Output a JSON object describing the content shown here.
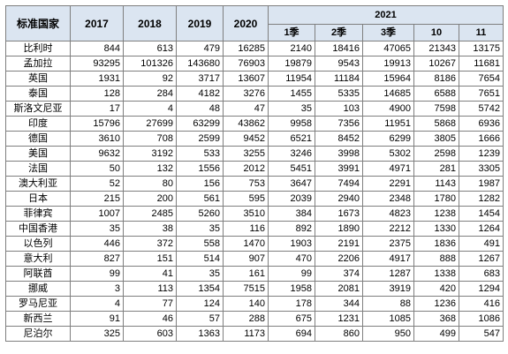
{
  "header": {
    "label": "标准国家",
    "years": [
      "2017",
      "2018",
      "2019",
      "2020"
    ],
    "group": "2021",
    "sub": [
      "1季",
      "2季",
      "3季",
      "10",
      "11"
    ]
  },
  "rows": [
    {
      "name": "比利时",
      "values": [
        "844",
        "613",
        "479",
        "16285",
        "2140",
        "18416",
        "47065",
        "21343",
        "13175"
      ]
    },
    {
      "name": "孟加拉",
      "values": [
        "93295",
        "101326",
        "143680",
        "76903",
        "19879",
        "9543",
        "19913",
        "10267",
        "11681"
      ]
    },
    {
      "name": "英国",
      "values": [
        "1931",
        "92",
        "3717",
        "13607",
        "11954",
        "11184",
        "15964",
        "8186",
        "7654"
      ]
    },
    {
      "name": "泰国",
      "values": [
        "128",
        "284",
        "4182",
        "3276",
        "1455",
        "5335",
        "14685",
        "6588",
        "7651"
      ]
    },
    {
      "name": "斯洛文尼亚",
      "values": [
        "17",
        "4",
        "48",
        "47",
        "35",
        "103",
        "4900",
        "7598",
        "5742"
      ]
    },
    {
      "name": "印度",
      "values": [
        "15796",
        "27699",
        "63299",
        "43862",
        "9958",
        "7356",
        "11951",
        "5868",
        "6936"
      ]
    },
    {
      "name": "德国",
      "values": [
        "3610",
        "708",
        "2599",
        "9452",
        "6521",
        "8452",
        "6299",
        "3805",
        "1666"
      ]
    },
    {
      "name": "美国",
      "values": [
        "9632",
        "3192",
        "533",
        "3255",
        "3246",
        "3998",
        "5302",
        "2598",
        "1239"
      ]
    },
    {
      "name": "法国",
      "values": [
        "50",
        "132",
        "1556",
        "2012",
        "5451",
        "3991",
        "4971",
        "281",
        "3305"
      ]
    },
    {
      "name": "澳大利亚",
      "values": [
        "52",
        "80",
        "156",
        "753",
        "3647",
        "7494",
        "2291",
        "1143",
        "1987"
      ]
    },
    {
      "name": "日本",
      "values": [
        "215",
        "200",
        "561",
        "595",
        "2039",
        "2940",
        "2348",
        "1780",
        "1282"
      ]
    },
    {
      "name": "菲律宾",
      "values": [
        "1007",
        "2485",
        "5260",
        "3510",
        "384",
        "1673",
        "4823",
        "1238",
        "1454"
      ]
    },
    {
      "name": "中国香港",
      "values": [
        "35",
        "38",
        "35",
        "116",
        "892",
        "1890",
        "2212",
        "1330",
        "1264"
      ]
    },
    {
      "name": "以色列",
      "values": [
        "446",
        "372",
        "558",
        "1470",
        "1903",
        "2191",
        "2375",
        "1836",
        "491"
      ]
    },
    {
      "name": "意大利",
      "values": [
        "827",
        "151",
        "514",
        "907",
        "470",
        "2206",
        "4917",
        "888",
        "1267"
      ]
    },
    {
      "name": "阿联酋",
      "values": [
        "99",
        "41",
        "35",
        "161",
        "99",
        "374",
        "1287",
        "1338",
        "683"
      ]
    },
    {
      "name": "挪威",
      "values": [
        "3",
        "113",
        "1354",
        "7515",
        "1958",
        "2081",
        "3919",
        "420",
        "1294"
      ]
    },
    {
      "name": "罗马尼亚",
      "values": [
        "4",
        "77",
        "124",
        "140",
        "178",
        "344",
        "88",
        "1236",
        "416"
      ]
    },
    {
      "name": "新西兰",
      "values": [
        "91",
        "46",
        "57",
        "288",
        "675",
        "1231",
        "1085",
        "368",
        "1086"
      ]
    },
    {
      "name": "尼泊尔",
      "values": [
        "325",
        "603",
        "1363",
        "1173",
        "694",
        "860",
        "950",
        "499",
        "547"
      ]
    }
  ]
}
